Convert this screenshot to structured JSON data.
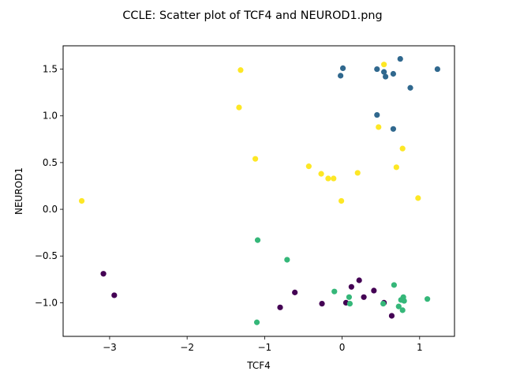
{
  "chart_data": {
    "type": "scatter",
    "title": "CCLE: Scatter plot of TCF4 and NEUROD1.png",
    "xlabel": "TCF4",
    "ylabel": "NEUROD1",
    "xlim": [
      -3.6,
      1.45
    ],
    "ylim": [
      -1.36,
      1.75
    ],
    "x_ticks": [
      -3,
      -2,
      -1,
      0,
      1
    ],
    "x_tick_labels": [
      "−3",
      "−2",
      "−1",
      "0",
      "1"
    ],
    "y_ticks": [
      -1.0,
      -0.5,
      0.0,
      0.5,
      1.0,
      1.5
    ],
    "y_tick_labels": [
      "−1.0",
      "−0.5",
      "0.0",
      "0.5",
      "1.0",
      "1.5"
    ],
    "grid": false,
    "legend": "none",
    "colors": {
      "cluster_purple": "#440154",
      "cluster_blue": "#30688e",
      "cluster_green": "#35b779",
      "cluster_yellow": "#fde725"
    },
    "points": [
      {
        "x": -3.08,
        "y": -0.69,
        "color": "#440154"
      },
      {
        "x": -2.94,
        "y": -0.92,
        "color": "#440154"
      },
      {
        "x": -0.8,
        "y": -1.05,
        "color": "#440154"
      },
      {
        "x": -0.61,
        "y": -0.89,
        "color": "#440154"
      },
      {
        "x": -0.26,
        "y": -1.01,
        "color": "#440154"
      },
      {
        "x": 0.05,
        "y": -1.0,
        "color": "#440154"
      },
      {
        "x": 0.12,
        "y": -0.83,
        "color": "#440154"
      },
      {
        "x": 0.22,
        "y": -0.76,
        "color": "#440154"
      },
      {
        "x": 0.28,
        "y": -0.94,
        "color": "#440154"
      },
      {
        "x": 0.41,
        "y": -0.87,
        "color": "#440154"
      },
      {
        "x": 0.54,
        "y": -1.0,
        "color": "#440154"
      },
      {
        "x": 0.64,
        "y": -1.14,
        "color": "#440154"
      },
      {
        "x": -0.02,
        "y": 1.43,
        "color": "#30688e"
      },
      {
        "x": 0.01,
        "y": 1.51,
        "color": "#30688e"
      },
      {
        "x": 0.45,
        "y": 1.5,
        "color": "#30688e"
      },
      {
        "x": 0.54,
        "y": 1.47,
        "color": "#30688e"
      },
      {
        "x": 0.56,
        "y": 1.42,
        "color": "#30688e"
      },
      {
        "x": 0.66,
        "y": 1.45,
        "color": "#30688e"
      },
      {
        "x": 0.75,
        "y": 1.61,
        "color": "#30688e"
      },
      {
        "x": 0.88,
        "y": 1.3,
        "color": "#30688e"
      },
      {
        "x": 1.23,
        "y": 1.5,
        "color": "#30688e"
      },
      {
        "x": 0.45,
        "y": 1.01,
        "color": "#30688e"
      },
      {
        "x": 0.66,
        "y": 0.86,
        "color": "#30688e"
      },
      {
        "x": -1.09,
        "y": -0.33,
        "color": "#35b779"
      },
      {
        "x": -0.71,
        "y": -0.54,
        "color": "#35b779"
      },
      {
        "x": -1.1,
        "y": -1.21,
        "color": "#35b779"
      },
      {
        "x": -0.1,
        "y": -0.88,
        "color": "#35b779"
      },
      {
        "x": 0.09,
        "y": -0.94,
        "color": "#35b779"
      },
      {
        "x": 0.1,
        "y": -1.01,
        "color": "#35b779"
      },
      {
        "x": 0.53,
        "y": -1.01,
        "color": "#35b779"
      },
      {
        "x": 0.67,
        "y": -0.81,
        "color": "#35b779"
      },
      {
        "x": 0.73,
        "y": -1.04,
        "color": "#35b779"
      },
      {
        "x": 0.76,
        "y": -0.97,
        "color": "#35b779"
      },
      {
        "x": 0.79,
        "y": -0.94,
        "color": "#35b779"
      },
      {
        "x": 0.8,
        "y": -0.98,
        "color": "#35b779"
      },
      {
        "x": 0.78,
        "y": -1.08,
        "color": "#35b779"
      },
      {
        "x": 1.1,
        "y": -0.96,
        "color": "#35b779"
      },
      {
        "x": -3.36,
        "y": 0.09,
        "color": "#fde725"
      },
      {
        "x": -1.31,
        "y": 1.49,
        "color": "#fde725"
      },
      {
        "x": -1.33,
        "y": 1.09,
        "color": "#fde725"
      },
      {
        "x": -1.12,
        "y": 0.54,
        "color": "#fde725"
      },
      {
        "x": -0.43,
        "y": 0.46,
        "color": "#fde725"
      },
      {
        "x": -0.27,
        "y": 0.38,
        "color": "#fde725"
      },
      {
        "x": -0.18,
        "y": 0.33,
        "color": "#fde725"
      },
      {
        "x": -0.11,
        "y": 0.33,
        "color": "#fde725"
      },
      {
        "x": -0.01,
        "y": 0.09,
        "color": "#fde725"
      },
      {
        "x": 0.2,
        "y": 0.39,
        "color": "#fde725"
      },
      {
        "x": 0.47,
        "y": 0.88,
        "color": "#fde725"
      },
      {
        "x": 0.54,
        "y": 1.55,
        "color": "#fde725"
      },
      {
        "x": 0.7,
        "y": 0.45,
        "color": "#fde725"
      },
      {
        "x": 0.78,
        "y": 0.65,
        "color": "#fde725"
      },
      {
        "x": 0.98,
        "y": 0.12,
        "color": "#fde725"
      }
    ]
  }
}
